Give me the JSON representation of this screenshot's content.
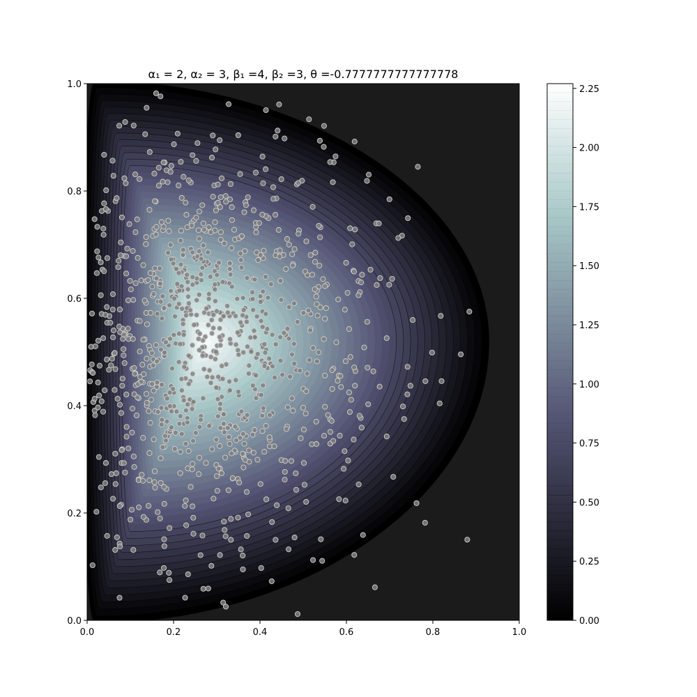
{
  "chart_data": {
    "type": "heatmap",
    "subtype": "filled-contour-with-scatter",
    "title": "α₁ = 2, α₂ = 3, β₁ =4, β₂ =3, θ =-0.7777777777777778",
    "xlabel": "",
    "ylabel": "",
    "xlim": [
      0.0,
      1.0
    ],
    "ylim": [
      0.0,
      1.0
    ],
    "x_ticks": [
      "0.0",
      "0.2",
      "0.4",
      "0.6",
      "0.8",
      "1.0"
    ],
    "y_ticks": [
      "0.0",
      "0.2",
      "0.4",
      "0.6",
      "0.8",
      "1.0"
    ],
    "colorbar": {
      "colormap": "bone",
      "range": [
        0.0,
        2.27
      ],
      "ticks": [
        "0.00",
        "0.25",
        "0.50",
        "0.75",
        "1.00",
        "1.25",
        "1.50",
        "1.75",
        "2.00",
        "2.25"
      ]
    },
    "density_peak": {
      "x": 0.27,
      "y": 0.52,
      "value": 2.27
    },
    "density_extent": {
      "x_max": 0.93,
      "y_min": 0.0,
      "y_max": 1.0
    },
    "scatter": {
      "approx_count": 1000,
      "marker_color": "#808080",
      "edge_color": "#d0d0d0"
    },
    "grid": false
  },
  "colors": {
    "background_low": "#1b1b1b",
    "mid": "#5a5a7a",
    "high": "#ffffff"
  }
}
